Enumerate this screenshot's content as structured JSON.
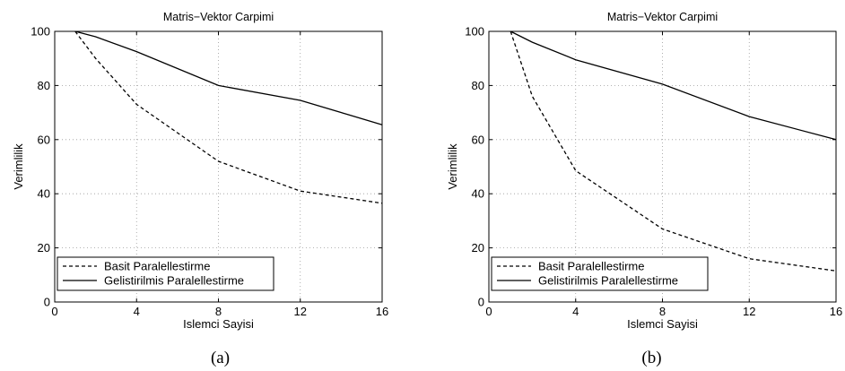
{
  "chart_data": [
    {
      "type": "line",
      "title": "Matris−Vektor Carpimi",
      "xlabel": "Islemci Sayisi",
      "ylabel": "Verimlilik",
      "xlim": [
        0,
        16
      ],
      "ylim": [
        0,
        100
      ],
      "xticks": [
        "0",
        "4",
        "8",
        "12",
        "16"
      ],
      "yticks": [
        "0",
        "20",
        "40",
        "60",
        "80",
        "100"
      ],
      "grid": true,
      "legend_position": "bottom-left",
      "caption": "(a)",
      "series": [
        {
          "name": "Basit Paralellestirme",
          "style": "dashed",
          "x": [
            1,
            2,
            4,
            8,
            12,
            16
          ],
          "y": [
            100,
            90,
            73,
            52,
            41,
            36.5
          ]
        },
        {
          "name": "Gelistirilmis Paralellestirme",
          "style": "solid",
          "x": [
            1,
            2,
            4,
            8,
            12,
            16
          ],
          "y": [
            100,
            98,
            92.5,
            80,
            74.5,
            65.5
          ]
        }
      ]
    },
    {
      "type": "line",
      "title": "Matris−Vektor Carpimi",
      "xlabel": "Islemci Sayisi",
      "ylabel": "Verimlilik",
      "xlim": [
        0,
        16
      ],
      "ylim": [
        0,
        100
      ],
      "xticks": [
        "0",
        "4",
        "8",
        "12",
        "16"
      ],
      "yticks": [
        "0",
        "20",
        "40",
        "60",
        "80",
        "100"
      ],
      "grid": true,
      "legend_position": "bottom-left",
      "caption": "(b)",
      "series": [
        {
          "name": "Basit Paralellestirme",
          "style": "dashed",
          "x": [
            1,
            2,
            4,
            8,
            12,
            16
          ],
          "y": [
            100,
            76,
            48.5,
            27,
            16,
            11.5
          ]
        },
        {
          "name": "Gelistirilmis Paralellestirme",
          "style": "solid",
          "x": [
            1,
            2,
            4,
            8,
            12,
            16
          ],
          "y": [
            100,
            96,
            89.5,
            80.5,
            68.5,
            60
          ]
        }
      ]
    }
  ],
  "colors": {
    "line": "#000000",
    "grid": "#9a9a9a",
    "background": "#ffffff"
  }
}
